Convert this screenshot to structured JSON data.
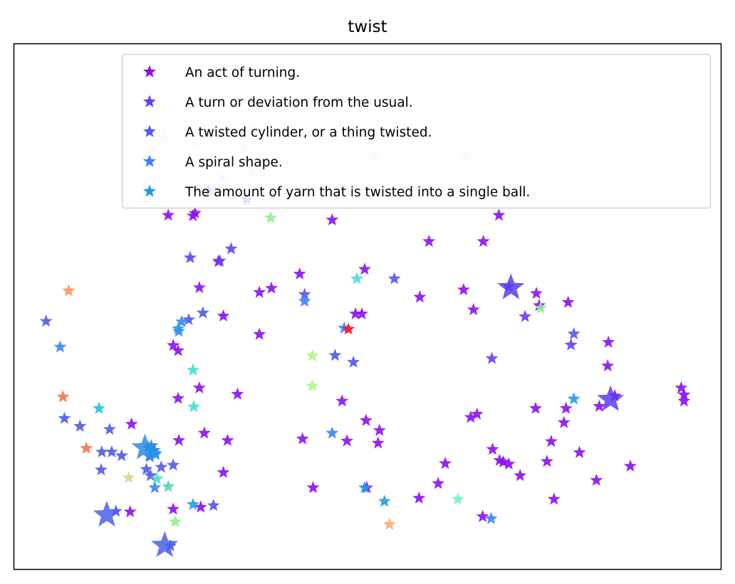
{
  "chart_data": {
    "type": "scatter",
    "title": "twist",
    "xlabel": "",
    "ylabel": "",
    "ticks_shown": false,
    "grid": false,
    "legend_position": "top-right",
    "xlim": [
      0,
      100
    ],
    "ylim": [
      0,
      100
    ],
    "marker": "star",
    "series": [
      {
        "name": "An act of turning.",
        "color": "#8b0ff0",
        "points": [
          [
            26.2,
            53.6
          ],
          [
            28.9,
            58.6
          ],
          [
            34.7,
            52.7
          ],
          [
            34.7,
            44.7
          ],
          [
            36.4,
            53.5
          ],
          [
            40.4,
            56.2
          ],
          [
            48.3,
            48.6
          ],
          [
            49.2,
            48.6
          ],
          [
            49.6,
            57.1
          ],
          [
            57.4,
            51.8
          ],
          [
            63.6,
            53.2
          ],
          [
            65.0,
            49.4
          ],
          [
            73.9,
            52.5
          ],
          [
            74.3,
            50.2
          ],
          [
            78.4,
            50.8
          ],
          [
            84.1,
            43.2
          ],
          [
            84.0,
            38.7
          ],
          [
            94.4,
            34.5
          ],
          [
            94.8,
            33.2
          ],
          [
            94.8,
            32.0
          ],
          [
            85.0,
            33.0
          ],
          [
            82.8,
            31.0
          ],
          [
            77.8,
            27.9
          ],
          [
            76.0,
            24.3
          ],
          [
            73.8,
            30.6
          ],
          [
            64.6,
            28.9
          ],
          [
            65.5,
            29.5
          ],
          [
            67.7,
            22.8
          ],
          [
            68.7,
            20.7
          ],
          [
            70.0,
            20.0
          ],
          [
            69.2,
            20.4
          ],
          [
            75.4,
            20.5
          ],
          [
            78.1,
            30.6
          ],
          [
            71.6,
            17.8
          ],
          [
            80.0,
            22.2
          ],
          [
            76.4,
            13.3
          ],
          [
            82.4,
            16.9
          ],
          [
            87.2,
            19.6
          ],
          [
            29.6,
            18.4
          ],
          [
            30.2,
            24.5
          ],
          [
            29.6,
            48.2
          ],
          [
            23.2,
            41.6
          ],
          [
            22.5,
            42.6
          ],
          [
            23.2,
            32.5
          ],
          [
            26.2,
            34.5
          ],
          [
            31.6,
            33.3
          ],
          [
            16.6,
            27.6
          ],
          [
            23.3,
            24.5
          ],
          [
            26.9,
            25.9
          ],
          [
            40.8,
            24.8
          ],
          [
            47.1,
            24.4
          ],
          [
            49.8,
            28.3
          ],
          [
            51.7,
            26.4
          ],
          [
            51.5,
            24.0
          ],
          [
            46.4,
            32.0
          ],
          [
            42.3,
            15.5
          ],
          [
            49.9,
            15.5
          ],
          [
            57.3,
            13.5
          ],
          [
            60.0,
            16.3
          ],
          [
            61.0,
            20.1
          ],
          [
            66.3,
            10.0
          ],
          [
            16.4,
            10.9
          ],
          [
            22.5,
            11.4
          ],
          [
            26.4,
            11.8
          ],
          [
            58.7,
            62.4
          ],
          [
            66.4,
            62.4
          ],
          [
            68.6,
            67.4
          ],
          [
            21.8,
            67.4
          ],
          [
            25.3,
            67.3
          ],
          [
            25.6,
            67.8
          ],
          [
            45.0,
            66.5
          ]
        ]
      },
      {
        "name": "A turn or deviation from the usual.",
        "color": "#6a3cf5",
        "points": [
          [
            24.9,
            59.3
          ],
          [
            30.7,
            61.0
          ],
          [
            70.0,
            53.8
          ],
          [
            72.3,
            48.1
          ],
          [
            78.8,
            42.7
          ],
          [
            67.6,
            40.1
          ],
          [
            29.1,
            58.7
          ],
          [
            27.5,
            72.0
          ],
          [
            32.9,
            70.4
          ]
        ]
      },
      {
        "name": "A twisted cylinder, or a thing twisted.",
        "color": "#5059e8",
        "points": [
          [
            26.7,
            48.8
          ],
          [
            24.7,
            47.5
          ],
          [
            48.0,
            39.4
          ],
          [
            45.4,
            40.7
          ],
          [
            53.8,
            55.3
          ],
          [
            41.1,
            52.3
          ],
          [
            4.5,
            47.2
          ],
          [
            7.1,
            28.7
          ],
          [
            9.3,
            27.2
          ],
          [
            13.5,
            26.6
          ],
          [
            12.4,
            22.3
          ],
          [
            13.8,
            22.3
          ],
          [
            15.2,
            21.6
          ],
          [
            19.2,
            21.4
          ],
          [
            20.8,
            19.4
          ],
          [
            22.5,
            19.8
          ],
          [
            19.8,
            22.6
          ],
          [
            12.3,
            18.9
          ],
          [
            18.7,
            19.0
          ],
          [
            19.3,
            17.8
          ],
          [
            14.4,
            11.0
          ],
          [
            28.2,
            12.1
          ],
          [
            22.1,
            4.4
          ],
          [
            79.2,
            44.8
          ]
        ]
      },
      {
        "name": "A spiral shape.",
        "color": "#3b82f6",
        "points": [
          [
            41.1,
            51.0
          ],
          [
            6.5,
            42.3
          ],
          [
            23.3,
            45.3
          ],
          [
            45.0,
            25.9
          ],
          [
            46.7,
            45.9
          ],
          [
            19.0,
            23.2
          ],
          [
            19.4,
            22.5
          ],
          [
            20.0,
            21.8
          ],
          [
            19.9,
            15.5
          ],
          [
            67.5,
            9.6
          ],
          [
            23.7,
            47.1
          ]
        ]
      },
      {
        "name": "The amount of yarn that is twisted into a single ball.",
        "color": "#1e9ce8",
        "points": [
          [
            19.4,
            23.5
          ],
          [
            20.0,
            22.1
          ],
          [
            19.1,
            21.6
          ],
          [
            49.6,
            15.5
          ],
          [
            52.4,
            12.9
          ],
          [
            25.3,
            12.3
          ],
          [
            79.2,
            32.4
          ],
          [
            23.2,
            45.8
          ]
        ]
      },
      {
        "color": "#20c2df",
        "points": [
          [
            12.0,
            30.6
          ]
        ]
      },
      {
        "color": "#40e0d0",
        "points": [
          [
            48.5,
            55.3
          ],
          [
            25.3,
            37.9
          ],
          [
            20.2,
            17.2
          ],
          [
            25.4,
            30.9
          ]
        ]
      },
      {
        "color": "#4fd6b8",
        "points": [
          [
            21.8,
            15.7
          ]
        ]
      },
      {
        "color": "#6ff0c6",
        "points": [
          [
            62.8,
            13.3
          ]
        ]
      },
      {
        "color": "#90ee90",
        "points": [
          [
            36.3,
            66.9
          ],
          [
            74.5,
            49.7
          ],
          [
            22.8,
            9.0
          ]
        ]
      },
      {
        "color": "#b5f28a",
        "points": [
          [
            42.2,
            40.6
          ],
          [
            42.2,
            34.9
          ]
        ]
      },
      {
        "color": "#e3d289",
        "points": [
          [
            16.2,
            17.4
          ]
        ]
      },
      {
        "color": "#ffaa66",
        "points": [
          [
            53.1,
            8.5
          ]
        ]
      },
      {
        "color": "#ff9059",
        "points": [
          [
            7.7,
            53.0
          ]
        ]
      },
      {
        "color": "#ff7045",
        "points": [
          [
            6.9,
            32.8
          ],
          [
            10.2,
            23.0
          ]
        ]
      },
      {
        "color": "#ff1010",
        "points": [
          [
            47.3,
            45.7
          ]
        ]
      },
      {
        "color": "#e6d9ff",
        "points": [
          [
            33.0,
            94.6
          ],
          [
            28.5,
            84.7
          ],
          [
            32.5,
            80.2
          ],
          [
            34.0,
            84.0
          ],
          [
            21.2,
            82.1
          ],
          [
            25.7,
            80.9
          ],
          [
            29.6,
            74.6
          ],
          [
            33.6,
            75.7
          ],
          [
            50.9,
            78.6
          ],
          [
            64.0,
            78.6
          ]
        ]
      },
      {
        "color": "#ffc9c0",
        "points": [
          [
            28.1,
            71.4
          ]
        ]
      }
    ],
    "large_markers": [
      {
        "color": "#5b3cf0",
        "points": [
          [
            70.3,
            53.6
          ],
          [
            84.4,
            32.3
          ]
        ]
      },
      {
        "color": "#4a62e8",
        "points": [
          [
            13.1,
            10.3
          ],
          [
            21.3,
            4.5
          ]
        ]
      },
      {
        "color": "#2f8be6",
        "points": [
          [
            18.5,
            23.1
          ]
        ]
      }
    ]
  }
}
